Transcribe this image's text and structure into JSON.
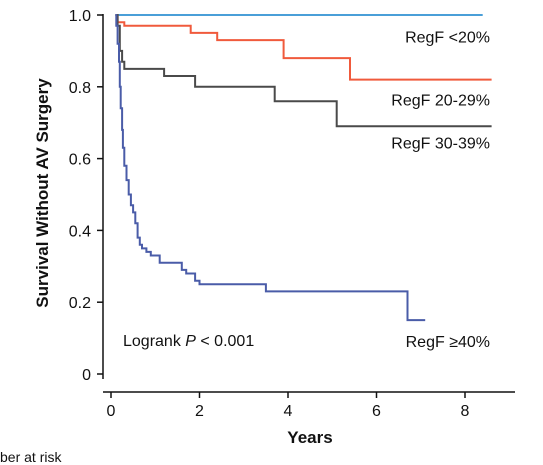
{
  "chart_data": {
    "type": "line",
    "title": "",
    "xlabel": "Years",
    "ylabel": "Survival Without AV Surgery",
    "xlim": [
      0,
      9
    ],
    "ylim": [
      0,
      1.0
    ],
    "x_ticks": [
      0,
      2,
      4,
      6,
      8
    ],
    "y_ticks": [
      0,
      0.2,
      0.4,
      0.6,
      0.8,
      1.0
    ],
    "x_tick_labels": [
      "0",
      "2",
      "4",
      "6",
      "8"
    ],
    "y_tick_labels": [
      "0",
      "0.2",
      "0.4",
      "0.6",
      "0.8",
      "1.0"
    ],
    "step": true,
    "grid": false,
    "annotation": {
      "prefix": "Logrank ",
      "p_symbol": "P",
      "suffix": " < 0.001"
    },
    "series": [
      {
        "name": "RegF <20%",
        "color": "#4a9fd8",
        "points": [
          [
            0.1,
            1.0
          ],
          [
            8.4,
            1.0
          ]
        ]
      },
      {
        "name": "RegF 20-29%",
        "color": "#f05a3c",
        "points": [
          [
            0.1,
            1.0
          ],
          [
            0.15,
            0.98
          ],
          [
            0.3,
            0.97
          ],
          [
            1.8,
            0.95
          ],
          [
            2.4,
            0.93
          ],
          [
            3.9,
            0.88
          ],
          [
            5.4,
            0.82
          ],
          [
            8.6,
            0.82
          ]
        ]
      },
      {
        "name": "RegF 30-39%",
        "color": "#4a4a4a",
        "points": [
          [
            0.1,
            1.0
          ],
          [
            0.15,
            0.97
          ],
          [
            0.2,
            0.9
          ],
          [
            0.25,
            0.87
          ],
          [
            0.3,
            0.85
          ],
          [
            1.2,
            0.83
          ],
          [
            1.9,
            0.8
          ],
          [
            3.7,
            0.76
          ],
          [
            5.1,
            0.69
          ],
          [
            8.6,
            0.69
          ]
        ]
      },
      {
        "name": "RegF ≥40%",
        "color": "#4a5ca8",
        "points": [
          [
            0.1,
            1.0
          ],
          [
            0.12,
            0.97
          ],
          [
            0.15,
            0.92
          ],
          [
            0.18,
            0.87
          ],
          [
            0.2,
            0.8
          ],
          [
            0.22,
            0.74
          ],
          [
            0.25,
            0.68
          ],
          [
            0.27,
            0.63
          ],
          [
            0.3,
            0.58
          ],
          [
            0.35,
            0.54
          ],
          [
            0.4,
            0.5
          ],
          [
            0.45,
            0.47
          ],
          [
            0.5,
            0.45
          ],
          [
            0.55,
            0.42
          ],
          [
            0.6,
            0.38
          ],
          [
            0.65,
            0.36
          ],
          [
            0.7,
            0.35
          ],
          [
            0.8,
            0.34
          ],
          [
            0.9,
            0.33
          ],
          [
            1.1,
            0.31
          ],
          [
            1.6,
            0.29
          ],
          [
            1.7,
            0.28
          ],
          [
            1.9,
            0.26
          ],
          [
            2.0,
            0.25
          ],
          [
            3.5,
            0.23
          ],
          [
            6.7,
            0.15
          ],
          [
            7.1,
            0.15
          ]
        ]
      }
    ],
    "cropped_text": "ber at risk"
  }
}
